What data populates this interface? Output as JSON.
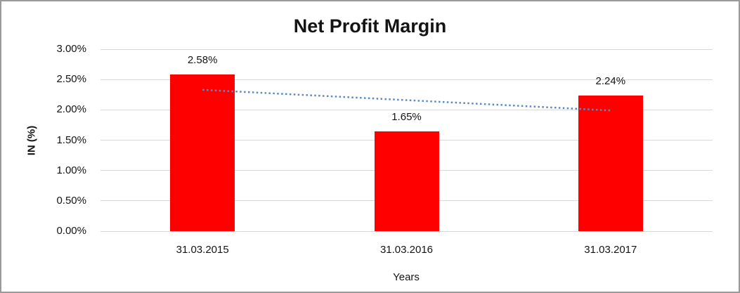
{
  "chart_data": {
    "type": "bar",
    "title": "Net Profit Margin",
    "xlabel": "Years",
    "ylabel": "IN (%)",
    "categories": [
      "31.03.2015",
      "31.03.2016",
      "31.03.2017"
    ],
    "values": [
      2.58,
      1.65,
      2.24
    ],
    "data_labels": [
      "2.58%",
      "1.65%",
      "2.24%"
    ],
    "yticks": [
      {
        "value": 0.0,
        "label": "0.00%"
      },
      {
        "value": 0.5,
        "label": "0.50%"
      },
      {
        "value": 1.0,
        "label": "1.00%"
      },
      {
        "value": 1.5,
        "label": "1.50%"
      },
      {
        "value": 2.0,
        "label": "2.00%"
      },
      {
        "value": 2.5,
        "label": "2.50%"
      },
      {
        "value": 3.0,
        "label": "3.00%"
      }
    ],
    "ylim": [
      0,
      3
    ],
    "grid": true,
    "legend": "none",
    "bar_color": "#ff0000",
    "gridline_color": "#d9d9d9",
    "text_color": "#141414",
    "trendline": {
      "type": "linear",
      "style": "dotted",
      "color": "#5a8ac6",
      "start_value": 2.33,
      "end_value": 1.99
    }
  }
}
